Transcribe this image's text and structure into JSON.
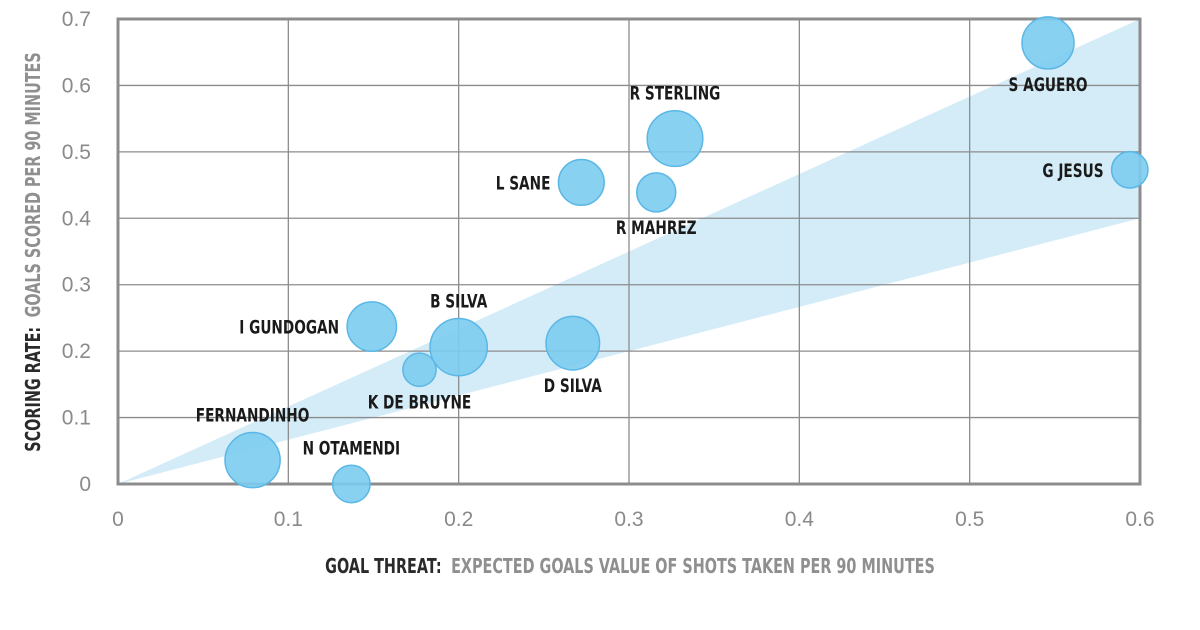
{
  "chart_data": {
    "type": "scatter",
    "xlim": [
      0,
      0.6
    ],
    "ylim": [
      0,
      0.7
    ],
    "grid": true,
    "x_ticks": [
      "0",
      "0.1",
      "0.2",
      "0.3",
      "0.4",
      "0.5",
      "0.6"
    ],
    "y_ticks": [
      "0",
      "0.1",
      "0.2",
      "0.3",
      "0.4",
      "0.5",
      "0.6",
      "0.7"
    ],
    "xlabel": {
      "bold": "GOAL THREAT:",
      "rest": "EXPECTED GOALS VALUE OF SHOTS TAKEN PER 90 MINUTES"
    },
    "ylabel": {
      "bold": "SCORING RATE:",
      "rest": "GOALS SCORED PER 90 MINUTES"
    },
    "band": {
      "upper": [
        [
          0,
          0
        ],
        [
          0.6,
          0.7
        ]
      ],
      "lower": [
        [
          0,
          0
        ],
        [
          0.6,
          0.4
        ]
      ]
    },
    "colors": {
      "bubble_fill": "#7cccf0",
      "bubble_stroke": "#5ab7e6",
      "band": "#d3ecf8",
      "grid": "#8c8c8c",
      "frame": "#8c8c8c"
    },
    "points": [
      {
        "name": "S AGUERO",
        "x": 0.546,
        "y": 0.664,
        "size": 1.0,
        "label_pos": "below"
      },
      {
        "name": "R STERLING",
        "x": 0.327,
        "y": 0.52,
        "size": 1.07,
        "label_pos": "above"
      },
      {
        "name": "G JESUS",
        "x": 0.594,
        "y": 0.473,
        "size": 0.7,
        "label_pos": "left"
      },
      {
        "name": "L SANE",
        "x": 0.272,
        "y": 0.454,
        "size": 0.88,
        "label_pos": "left"
      },
      {
        "name": "R MAHREZ",
        "x": 0.316,
        "y": 0.439,
        "size": 0.75,
        "label_pos": "below"
      },
      {
        "name": "B SILVA",
        "x": 0.2,
        "y": 0.206,
        "size": 1.1,
        "label_pos": "above"
      },
      {
        "name": "I GUNDOGAN",
        "x": 0.149,
        "y": 0.237,
        "size": 0.95,
        "label_pos": "left"
      },
      {
        "name": "D SILVA",
        "x": 0.267,
        "y": 0.212,
        "size": 1.03,
        "label_pos": "below"
      },
      {
        "name": "K DE BRUYNE",
        "x": 0.177,
        "y": 0.172,
        "size": 0.64,
        "label_pos": "below"
      },
      {
        "name": "FERNANDINHO",
        "x": 0.079,
        "y": 0.036,
        "size": 1.06,
        "label_pos": "above"
      },
      {
        "name": "N OTAMENDI",
        "x": 0.137,
        "y": 0.0,
        "size": 0.72,
        "label_pos": "above"
      }
    ]
  }
}
